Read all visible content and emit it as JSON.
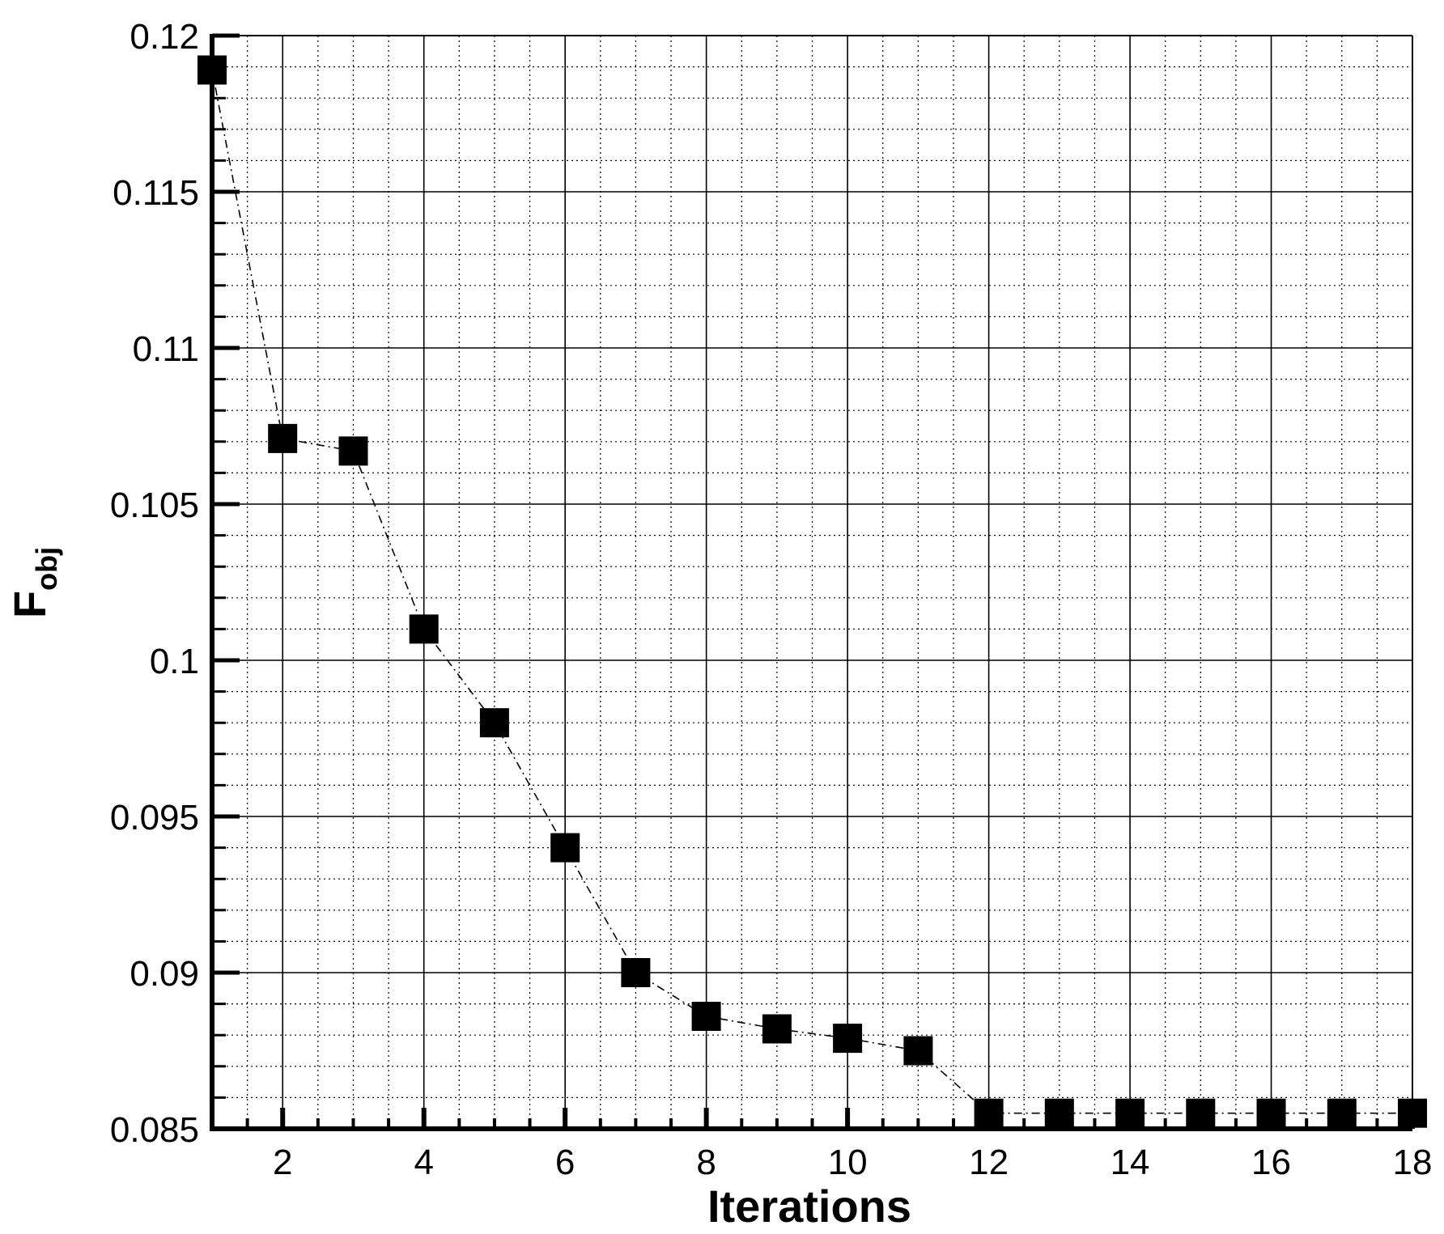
{
  "chart_data": {
    "type": "line",
    "title": "",
    "xlabel": "Iterations",
    "ylabel": "F",
    "ylabel_subscript": "obj",
    "xlim": [
      1,
      18
    ],
    "ylim": [
      0.085,
      0.12
    ],
    "x_ticks": [
      2,
      4,
      6,
      8,
      10,
      12,
      14,
      16,
      18
    ],
    "x_tick_labels": [
      "2",
      "4",
      "6",
      "8",
      "10",
      "12",
      "14",
      "16",
      "18"
    ],
    "y_ticks": [
      0.085,
      0.09,
      0.095,
      0.1,
      0.105,
      0.11,
      0.115,
      0.12
    ],
    "y_tick_labels": [
      "0.085",
      "0.09",
      "0.095",
      "0.1",
      "0.105",
      "0.11",
      "0.115",
      "0.12"
    ],
    "grid": true,
    "marker": "square",
    "line_style": "dash-dot",
    "series": [
      {
        "x": [
          1,
          2,
          3,
          4,
          5,
          6,
          7,
          8,
          9,
          10,
          11,
          12,
          13,
          14,
          15,
          16,
          17,
          18
        ],
        "values": [
          0.1189,
          0.1071,
          0.1067,
          0.101,
          0.098,
          0.094,
          0.09,
          0.0886,
          0.0882,
          0.0879,
          0.0875,
          0.0855,
          0.0855,
          0.0855,
          0.0855,
          0.0855,
          0.0855,
          0.0855
        ]
      }
    ],
    "colors": {
      "line": "#000000",
      "marker": "#000000",
      "grid_major": "#000000",
      "grid_minor": "#000000"
    }
  }
}
